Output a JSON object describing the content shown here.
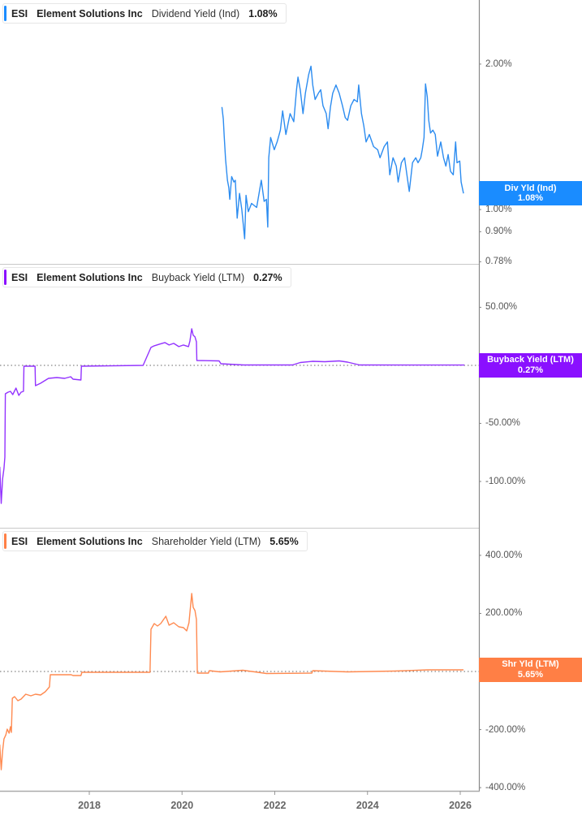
{
  "panels": [
    {
      "ticker": "ESI",
      "company": "Element Solutions Inc",
      "metric": "Dividend Yield (Ind)",
      "value": "1.08%",
      "color": "#1A8CFF",
      "line_color": "#2C8CF0",
      "tag_label": "Div Yld (Ind)",
      "tag_value": "1.08%"
    },
    {
      "ticker": "ESI",
      "company": "Element Solutions Inc",
      "metric": "Buyback Yield (LTM)",
      "value": "0.27%",
      "color": "#8A10FF",
      "line_color": "#9333FF",
      "tag_label": "Buyback Yield (LTM)",
      "tag_value": "0.27%"
    },
    {
      "ticker": "ESI",
      "company": "Element Solutions Inc",
      "metric": "Shareholder Yield (LTM)",
      "value": "5.65%",
      "color": "#FF7F45",
      "line_color": "#FF8A50",
      "tag_label": "Shr Yld (LTM)",
      "tag_value": "5.65%"
    }
  ],
  "x_axis": {
    "ticks": [
      {
        "value": 2018,
        "label": "2018"
      },
      {
        "value": 2020,
        "label": "2020"
      },
      {
        "value": 2022,
        "label": "2022"
      },
      {
        "value": 2024,
        "label": "2024"
      },
      {
        "value": 2026,
        "label": "2026"
      }
    ]
  },
  "chart_data": [
    {
      "type": "line",
      "title": "ESI Element Solutions Inc Dividend Yield (Ind) 1.08%",
      "xlabel": "",
      "ylabel": "",
      "yscale": "log",
      "ylim": [
        0.772,
        2.714
      ],
      "xlim": [
        2016.07,
        2026.36
      ],
      "grid": false,
      "zero_line": false,
      "y_ticks": [
        {
          "value": 2.0,
          "label": "2.00%"
        },
        {
          "value": 1.0,
          "label": "1.00%"
        },
        {
          "value": 0.9,
          "label": "0.90%"
        },
        {
          "value": 0.78,
          "label": "0.78%"
        }
      ],
      "series": [
        {
          "name": "Dividend Yield (Ind)",
          "last_value": 1.08,
          "points": [
            [
              2020.86,
              1.63
            ],
            [
              2020.89,
              1.54
            ],
            [
              2020.91,
              1.42
            ],
            [
              2020.94,
              1.27
            ],
            [
              2020.98,
              1.15
            ],
            [
              2021.01,
              1.11
            ],
            [
              2021.03,
              1.05
            ],
            [
              2021.07,
              1.17
            ],
            [
              2021.12,
              1.14
            ],
            [
              2021.15,
              1.15
            ],
            [
              2021.19,
              0.96
            ],
            [
              2021.24,
              1.08
            ],
            [
              2021.29,
              1.0
            ],
            [
              2021.35,
              0.87
            ],
            [
              2021.38,
              1.07
            ],
            [
              2021.43,
              0.99
            ],
            [
              2021.5,
              1.03
            ],
            [
              2021.61,
              1.01
            ],
            [
              2021.71,
              1.15
            ],
            [
              2021.77,
              1.04
            ],
            [
              2021.82,
              1.05
            ],
            [
              2021.85,
              0.92
            ],
            [
              2021.87,
              1.28
            ],
            [
              2021.91,
              1.41
            ],
            [
              2021.99,
              1.33
            ],
            [
              2022.05,
              1.38
            ],
            [
              2022.12,
              1.46
            ],
            [
              2022.17,
              1.6
            ],
            [
              2022.24,
              1.43
            ],
            [
              2022.33,
              1.58
            ],
            [
              2022.41,
              1.52
            ],
            [
              2022.47,
              1.77
            ],
            [
              2022.5,
              1.88
            ],
            [
              2022.55,
              1.77
            ],
            [
              2022.61,
              1.58
            ],
            [
              2022.66,
              1.74
            ],
            [
              2022.73,
              1.9
            ],
            [
              2022.78,
              1.98
            ],
            [
              2022.82,
              1.81
            ],
            [
              2022.87,
              1.69
            ],
            [
              2022.94,
              1.74
            ],
            [
              2022.99,
              1.77
            ],
            [
              2023.04,
              1.64
            ],
            [
              2023.11,
              1.58
            ],
            [
              2023.15,
              1.47
            ],
            [
              2023.2,
              1.63
            ],
            [
              2023.25,
              1.74
            ],
            [
              2023.32,
              1.81
            ],
            [
              2023.39,
              1.74
            ],
            [
              2023.46,
              1.64
            ],
            [
              2023.52,
              1.55
            ],
            [
              2023.57,
              1.53
            ],
            [
              2023.64,
              1.64
            ],
            [
              2023.71,
              1.69
            ],
            [
              2023.78,
              1.67
            ],
            [
              2023.81,
              1.81
            ],
            [
              2023.87,
              1.58
            ],
            [
              2023.92,
              1.49
            ],
            [
              2023.97,
              1.38
            ],
            [
              2024.04,
              1.43
            ],
            [
              2024.13,
              1.35
            ],
            [
              2024.22,
              1.33
            ],
            [
              2024.27,
              1.28
            ],
            [
              2024.36,
              1.35
            ],
            [
              2024.43,
              1.38
            ],
            [
              2024.48,
              1.18
            ],
            [
              2024.55,
              1.28
            ],
            [
              2024.62,
              1.23
            ],
            [
              2024.66,
              1.14
            ],
            [
              2024.73,
              1.25
            ],
            [
              2024.8,
              1.28
            ],
            [
              2024.85,
              1.18
            ],
            [
              2024.9,
              1.09
            ],
            [
              2024.97,
              1.25
            ],
            [
              2025.04,
              1.28
            ],
            [
              2025.09,
              1.25
            ],
            [
              2025.15,
              1.28
            ],
            [
              2025.18,
              1.33
            ],
            [
              2025.22,
              1.41
            ],
            [
              2025.25,
              1.82
            ],
            [
              2025.29,
              1.71
            ],
            [
              2025.32,
              1.53
            ],
            [
              2025.36,
              1.44
            ],
            [
              2025.41,
              1.46
            ],
            [
              2025.46,
              1.43
            ],
            [
              2025.51,
              1.29
            ],
            [
              2025.58,
              1.38
            ],
            [
              2025.64,
              1.28
            ],
            [
              2025.69,
              1.23
            ],
            [
              2025.74,
              1.3
            ],
            [
              2025.79,
              1.2
            ],
            [
              2025.85,
              1.18
            ],
            [
              2025.9,
              1.38
            ],
            [
              2025.93,
              1.25
            ],
            [
              2025.99,
              1.26
            ],
            [
              2026.02,
              1.14
            ],
            [
              2026.07,
              1.08
            ]
          ]
        }
      ]
    },
    {
      "type": "line",
      "title": "ESI Element Solutions Inc Buyback Yield (LTM) 0.27%",
      "xlabel": "",
      "ylabel": "",
      "yscale": "linear",
      "ylim": [
        -139.9,
        87.4
      ],
      "xlim": [
        2016.07,
        2026.36
      ],
      "grid": false,
      "zero_line": true,
      "y_ticks": [
        {
          "value": 50,
          "label": "50.00%"
        },
        {
          "value": 0,
          "label": "0.00%"
        },
        {
          "value": -50,
          "label": "-50.00%"
        },
        {
          "value": -100,
          "label": "-100.00%"
        }
      ],
      "series": [
        {
          "name": "Buyback Yield (LTM)",
          "last_value": 0.27,
          "points": [
            [
              2016.07,
              -87.4
            ],
            [
              2016.1,
              -118.9
            ],
            [
              2016.13,
              -97.9
            ],
            [
              2016.16,
              -88.8
            ],
            [
              2016.18,
              -79.0
            ],
            [
              2016.19,
              -24.5
            ],
            [
              2016.25,
              -23.1
            ],
            [
              2016.3,
              -22.4
            ],
            [
              2016.35,
              -25.2
            ],
            [
              2016.42,
              -19.6
            ],
            [
              2016.48,
              -25.9
            ],
            [
              2016.53,
              -23.1
            ],
            [
              2016.58,
              -22.4
            ],
            [
              2016.59,
              -0.7
            ],
            [
              2016.83,
              -0.7
            ],
            [
              2016.84,
              -17.5
            ],
            [
              2016.95,
              -15.4
            ],
            [
              2017.12,
              -11.2
            ],
            [
              2017.3,
              -10.5
            ],
            [
              2017.47,
              -11.2
            ],
            [
              2017.6,
              -9.8
            ],
            [
              2017.65,
              -11.9
            ],
            [
              2017.82,
              -12.6
            ],
            [
              2017.83,
              -0.7
            ],
            [
              2019.16,
              0.0
            ],
            [
              2019.33,
              15.4
            ],
            [
              2019.4,
              16.8
            ],
            [
              2019.51,
              18.2
            ],
            [
              2019.63,
              19.6
            ],
            [
              2019.72,
              17.5
            ],
            [
              2019.82,
              18.9
            ],
            [
              2019.93,
              16.1
            ],
            [
              2020.03,
              17.5
            ],
            [
              2020.14,
              16.1
            ],
            [
              2020.17,
              21.0
            ],
            [
              2020.21,
              31.5
            ],
            [
              2020.24,
              25.9
            ],
            [
              2020.28,
              24.5
            ],
            [
              2020.31,
              20.3
            ],
            [
              2020.32,
              4.2
            ],
            [
              2020.8,
              3.8
            ],
            [
              2020.84,
              1.4
            ],
            [
              2021.33,
              0.3
            ],
            [
              2022.38,
              0.3
            ],
            [
              2022.55,
              2.4
            ],
            [
              2022.82,
              3.5
            ],
            [
              2023.08,
              3.1
            ],
            [
              2023.39,
              3.8
            ],
            [
              2023.57,
              2.8
            ],
            [
              2023.83,
              0.3
            ],
            [
              2026.09,
              0.27
            ]
          ]
        }
      ]
    },
    {
      "type": "line",
      "title": "ESI Element Solutions Inc Shareholder Yield (LTM) 5.65%",
      "xlabel": "",
      "ylabel": "",
      "yscale": "linear",
      "ylim": [
        -411,
        495
      ],
      "xlim": [
        2016.07,
        2026.36
      ],
      "grid": false,
      "zero_line": true,
      "y_ticks": [
        {
          "value": 400,
          "label": "400.00%"
        },
        {
          "value": 200,
          "label": "200.00%"
        },
        {
          "value": 0,
          "label": "0.00%"
        },
        {
          "value": -200,
          "label": "-200.00%"
        },
        {
          "value": -400,
          "label": "-400.00%"
        }
      ],
      "series": [
        {
          "name": "Shareholder Yield (LTM)",
          "last_value": 5.65,
          "points": [
            [
              2016.07,
              -251.7
            ],
            [
              2016.1,
              -338.4
            ],
            [
              2016.13,
              -274.1
            ],
            [
              2016.16,
              -232.2
            ],
            [
              2016.2,
              -218.2
            ],
            [
              2016.23,
              -198.6
            ],
            [
              2016.27,
              -212.6
            ],
            [
              2016.3,
              -190.2
            ],
            [
              2016.32,
              -209.8
            ],
            [
              2016.34,
              -92.3
            ],
            [
              2016.39,
              -86.7
            ],
            [
              2016.46,
              -100.7
            ],
            [
              2016.53,
              -95.1
            ],
            [
              2016.63,
              -78.3
            ],
            [
              2016.74,
              -83.9
            ],
            [
              2016.84,
              -78.3
            ],
            [
              2016.95,
              -81.1
            ],
            [
              2017.05,
              -69.9
            ],
            [
              2017.14,
              -53.1
            ],
            [
              2017.16,
              -11.2
            ],
            [
              2017.61,
              -11.2
            ],
            [
              2017.65,
              -14.0
            ],
            [
              2017.82,
              -14.0
            ],
            [
              2017.84,
              -2.8
            ],
            [
              2019.31,
              -2.8
            ],
            [
              2019.33,
              145.4
            ],
            [
              2019.4,
              165.0
            ],
            [
              2019.47,
              156.6
            ],
            [
              2019.54,
              165.0
            ],
            [
              2019.65,
              190.2
            ],
            [
              2019.72,
              159.4
            ],
            [
              2019.82,
              167.8
            ],
            [
              2019.93,
              153.8
            ],
            [
              2020.03,
              151.0
            ],
            [
              2020.1,
              139.9
            ],
            [
              2020.15,
              167.8
            ],
            [
              2020.21,
              268.5
            ],
            [
              2020.24,
              221.0
            ],
            [
              2020.28,
              209.8
            ],
            [
              2020.31,
              179.0
            ],
            [
              2020.33,
              -5.6
            ],
            [
              2020.57,
              -5.6
            ],
            [
              2020.59,
              2.8
            ],
            [
              2020.82,
              -1.4
            ],
            [
              2021.31,
              4.2
            ],
            [
              2021.57,
              -1.4
            ],
            [
              2021.82,
              -7.0
            ],
            [
              2022.8,
              -5.6
            ],
            [
              2022.82,
              2.8
            ],
            [
              2023.57,
              -1.4
            ],
            [
              2024.57,
              1.4
            ],
            [
              2025.3,
              5.6
            ],
            [
              2026.07,
              5.65
            ]
          ]
        }
      ]
    }
  ]
}
